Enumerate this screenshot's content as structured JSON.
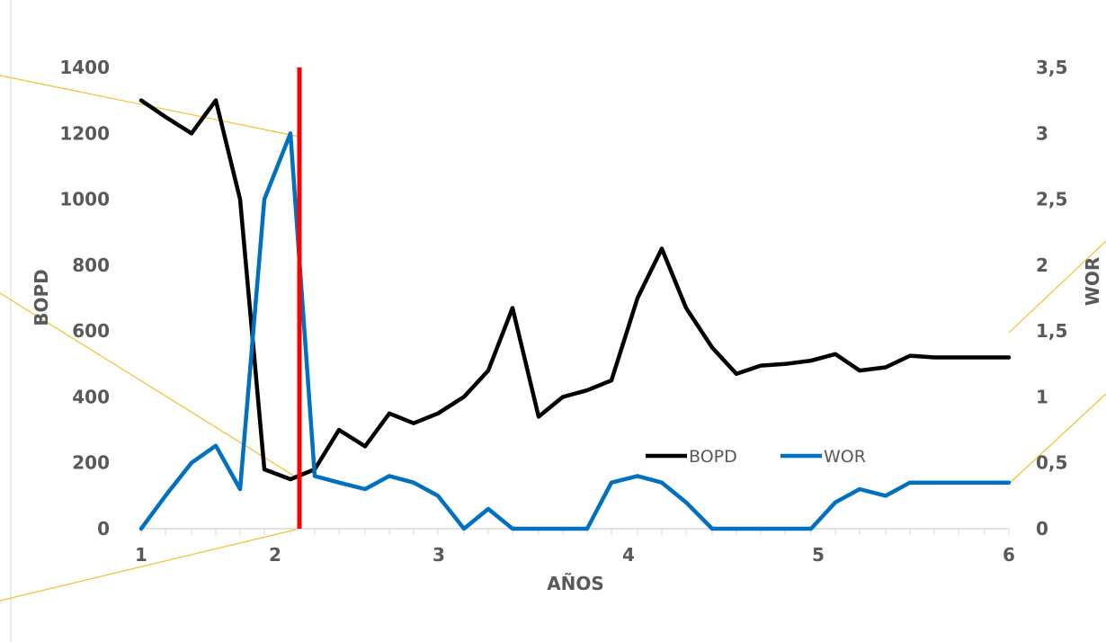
{
  "chart_data": {
    "type": "line",
    "xlabel": "AÑOS",
    "ylabel_left": "BOPD",
    "ylabel_right": "WOR",
    "x_ticks": [
      "1",
      "2",
      "3",
      "4",
      "5",
      "6"
    ],
    "y_left_ticks": [
      "0",
      "200",
      "400",
      "600",
      "800",
      "1000",
      "1200",
      "1400"
    ],
    "y_right_ticks": [
      "0",
      "0,5",
      "1",
      "1,5",
      "2",
      "2,5",
      "3",
      "3,5"
    ],
    "ylim_left": [
      0,
      1400
    ],
    "ylim_right": [
      0,
      3.5
    ],
    "xlim": [
      1,
      6
    ],
    "legend_position": "center-right",
    "marker_x": 2.13,
    "series": [
      {
        "name": "BOPD",
        "axis": "left",
        "color": "#000000",
        "x": [
          1.0,
          1.14,
          1.29,
          1.43,
          1.57,
          1.71,
          1.86,
          2.0,
          2.14,
          2.29,
          2.43,
          2.57,
          2.71,
          2.86,
          3.0,
          3.14,
          3.29,
          3.43,
          3.57,
          3.71,
          3.86,
          4.0,
          4.14,
          4.29,
          4.43,
          4.57,
          4.71,
          4.86,
          5.0,
          5.14,
          5.29,
          5.43,
          5.57,
          5.71,
          5.86,
          6.0
        ],
        "values": [
          1300,
          1250,
          1200,
          1300,
          1000,
          180,
          150,
          180,
          300,
          250,
          350,
          320,
          350,
          400,
          480,
          670,
          340,
          400,
          420,
          450,
          700,
          850,
          670,
          550,
          470,
          495,
          500,
          510,
          530,
          480,
          490,
          525,
          520,
          520,
          520,
          520
        ]
      },
      {
        "name": "WOR",
        "axis": "right",
        "color": "#0070C0",
        "x": [
          1.0,
          1.14,
          1.29,
          1.43,
          1.57,
          1.71,
          1.86,
          2.0,
          2.14,
          2.29,
          2.43,
          2.57,
          2.71,
          2.86,
          3.0,
          3.14,
          3.29,
          3.43,
          3.57,
          3.71,
          3.86,
          4.0,
          4.14,
          4.29,
          4.43,
          4.57,
          4.71,
          4.86,
          5.0,
          5.14,
          5.29,
          5.43,
          5.57,
          5.71,
          5.86,
          6.0
        ],
        "values": [
          0,
          0.25,
          0.5,
          0.63,
          0.3,
          2.5,
          3.0,
          0.4,
          0.35,
          0.3,
          0.4,
          0.35,
          0.25,
          0,
          0.15,
          0,
          0,
          0,
          0,
          0.35,
          0.4,
          0.35,
          0.2,
          0,
          0,
          0,
          0,
          0,
          0.2,
          0.3,
          0.25,
          0.35,
          0.35,
          0.35,
          0.35,
          0.35
        ]
      }
    ]
  }
}
